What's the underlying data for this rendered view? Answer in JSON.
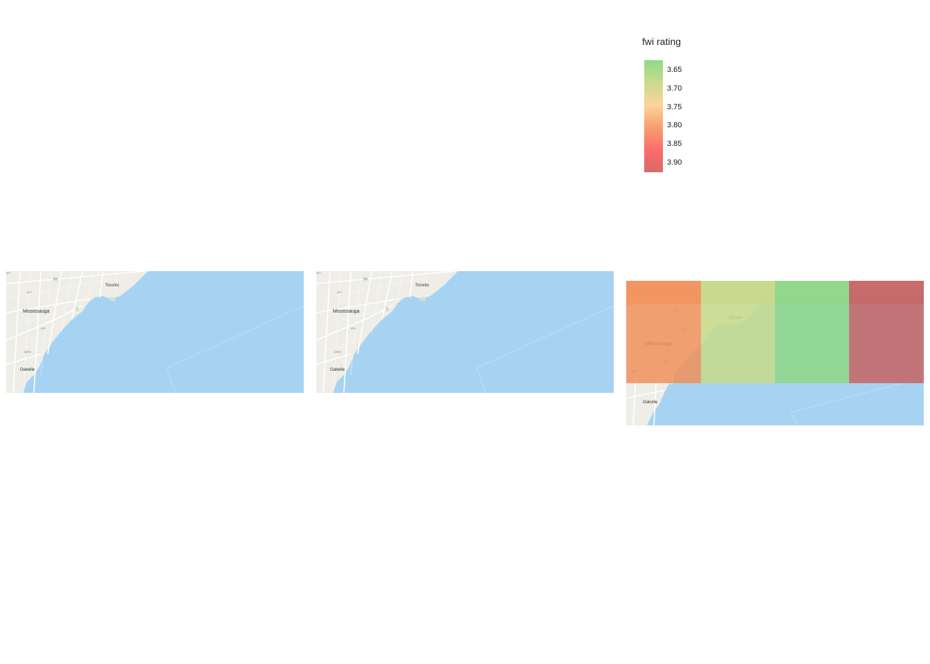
{
  "legend": {
    "title": "fwi rating",
    "ticks": [
      "3.65",
      "3.70",
      "3.75",
      "3.80",
      "3.85",
      "3.90"
    ],
    "gradient_colors": [
      "#8fd88a",
      "#c8dc8c",
      "#fdd49a",
      "#f4a070",
      "#ff6b6b",
      "#d86a6a"
    ]
  },
  "map": {
    "places": {
      "mississauga": "Mississauga",
      "toronto": "Toronto",
      "oakville": "Oakville"
    },
    "highways": {
      "h1": "401",
      "h2": "427",
      "h3": "403",
      "h4": "QEW",
      "h5": "407"
    },
    "colors": {
      "water": "#a7d3f2",
      "land": "#eeede7",
      "road": "#ffffff",
      "park": "#cde6c1"
    }
  },
  "chart_data": {
    "type": "heatmap",
    "title": "",
    "legend_title": "fwi rating",
    "color_range": [
      3.63,
      3.93
    ],
    "cells": [
      {
        "row": 0,
        "col": 0,
        "fwi": 3.79
      },
      {
        "row": 0,
        "col": 1,
        "fwi": 3.69
      },
      {
        "row": 0,
        "col": 2,
        "fwi": 3.65
      },
      {
        "row": 0,
        "col": 3,
        "fwi": 3.9
      },
      {
        "row": 1,
        "col": 0,
        "fwi": 3.79
      },
      {
        "row": 1,
        "col": 1,
        "fwi": 3.69
      },
      {
        "row": 1,
        "col": 2,
        "fwi": 3.65
      },
      {
        "row": 1,
        "col": 3,
        "fwi": 3.9
      }
    ],
    "color_hex": [
      "#f0905a",
      "#c6d98a",
      "#8ed786",
      "#c56464",
      "#f0905a",
      "#c6d98a",
      "#8ed786",
      "#c56464"
    ]
  }
}
